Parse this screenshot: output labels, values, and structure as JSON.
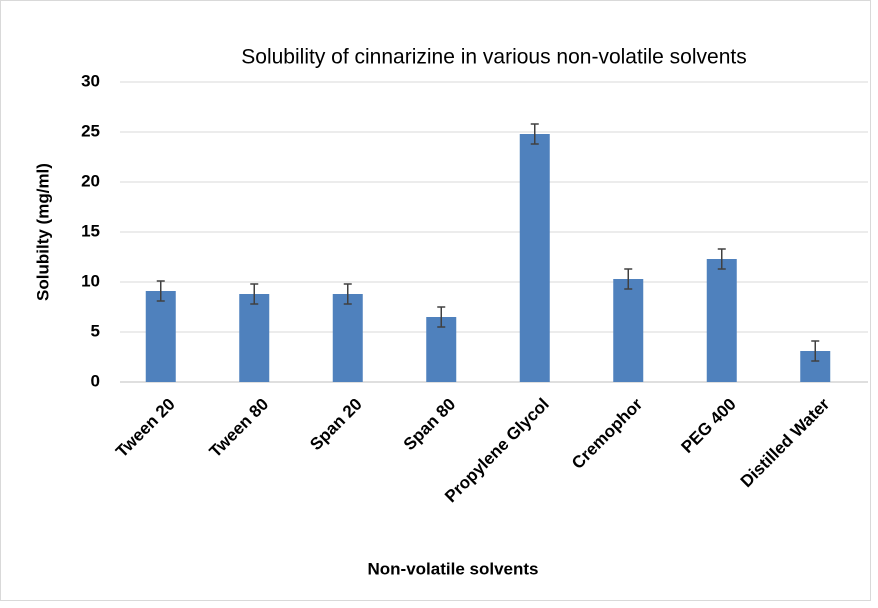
{
  "chart_data": {
    "type": "bar",
    "title": "Solubility of cinnarizine in various non-volatile solvents",
    "x_label": "Non-volatile solvents",
    "y_label": "Solubilty (mg/ml)",
    "categories": [
      "Tween 20",
      "Tween 80",
      "Span 20",
      "Span 80",
      "Propylene Glycol",
      "Cremophor",
      "PEG 400",
      "Distilled Water"
    ],
    "values": [
      9.1,
      8.8,
      8.8,
      6.5,
      24.8,
      10.3,
      12.3,
      3.1
    ],
    "errors": [
      1.0,
      1.0,
      1.0,
      1.0,
      1.0,
      1.0,
      1.0,
      1.0
    ],
    "color": "#4f81bd",
    "ylim": [
      0,
      30
    ],
    "yticks": [
      0,
      5,
      10,
      15,
      20,
      25,
      30
    ],
    "grid": true
  }
}
